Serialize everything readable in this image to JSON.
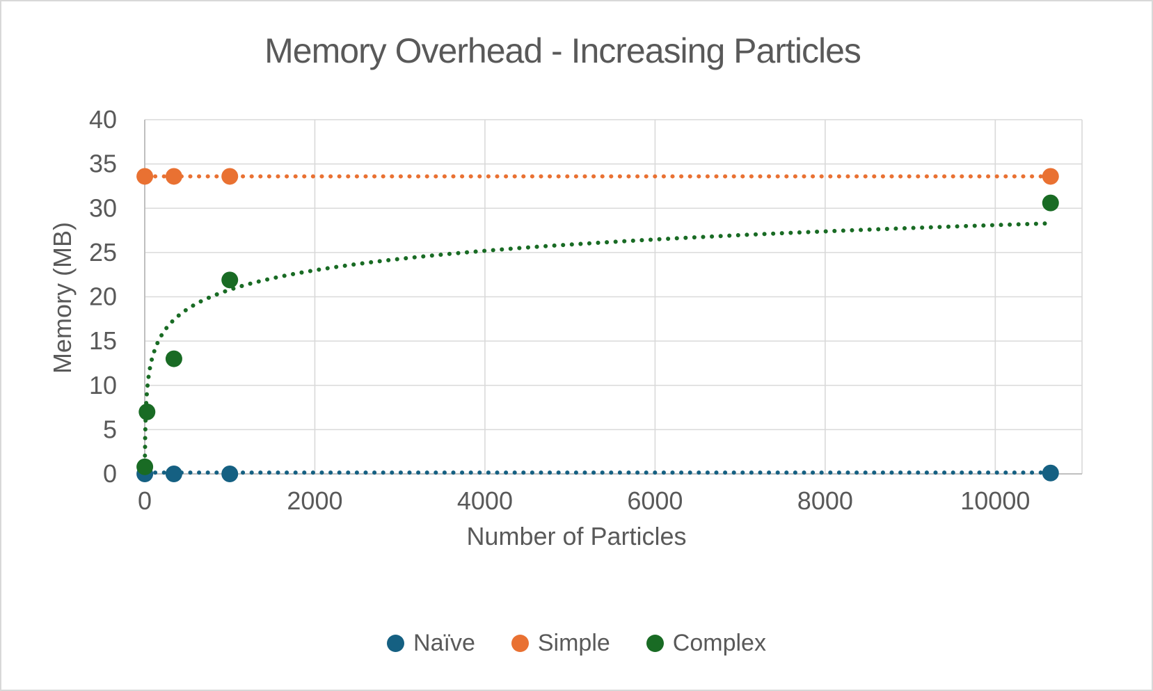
{
  "chart_data": {
    "type": "scatter",
    "title": "Memory Overhead - Increasing Particles",
    "xlabel": "Number of Particles",
    "ylabel": "Memory (MB)",
    "xlim": [
      0,
      11020
    ],
    "ylim": [
      0,
      40
    ],
    "x_ticks": [
      0,
      2000,
      4000,
      6000,
      8000,
      10000
    ],
    "y_ticks": [
      0,
      5,
      10,
      15,
      20,
      25,
      30,
      35,
      40
    ],
    "grid": true,
    "legend_position": "bottom",
    "colors": {
      "grid": "#D9D9D9",
      "axis": "#BFBFBF",
      "text": "#595959",
      "background": "#FFFFFF"
    },
    "series": [
      {
        "name": "Naïve",
        "color": "#156082",
        "points": [
          [
            1,
            0
          ],
          [
            343,
            0
          ],
          [
            1000,
            0
          ],
          [
            10650,
            0.1
          ]
        ],
        "trend": {
          "type": "constant",
          "value": 0.15,
          "x_start": 20,
          "x_end": 10650
        }
      },
      {
        "name": "Simple",
        "color": "#E97132",
        "points": [
          [
            1,
            33.6
          ],
          [
            343,
            33.6
          ],
          [
            1000,
            33.6
          ],
          [
            10650,
            33.6
          ]
        ],
        "trend": {
          "type": "constant",
          "value": 33.6,
          "x_start": 20,
          "x_end": 10650
        }
      },
      {
        "name": "Complex",
        "color": "#196B24",
        "points": [
          [
            1,
            0.8
          ],
          [
            27,
            7.0
          ],
          [
            343,
            13.0
          ],
          [
            1000,
            21.9
          ],
          [
            10650,
            30.6
          ]
        ],
        "trend": {
          "type": "logarithmic",
          "a": 3.17,
          "b": -1.1,
          "x_start": 1.45,
          "x_end": 10650
        }
      }
    ]
  }
}
